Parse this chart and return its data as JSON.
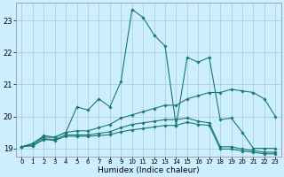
{
  "title": "",
  "xlabel": "Humidex (Indice chaleur)",
  "background_color": "#cceeff",
  "grid_color": "#aacccc",
  "line_color": "#1a7a6e",
  "xlim": [
    -0.5,
    23.5
  ],
  "ylim": [
    18.75,
    23.55
  ],
  "yticks": [
    19,
    20,
    21,
    22,
    23
  ],
  "xticks": [
    0,
    1,
    2,
    3,
    4,
    5,
    6,
    7,
    8,
    9,
    10,
    11,
    12,
    13,
    14,
    15,
    16,
    17,
    18,
    19,
    20,
    21,
    22,
    23
  ],
  "lines": [
    {
      "x": [
        0,
        1,
        2,
        3,
        4,
        5,
        6,
        7,
        8,
        9,
        10,
        11,
        12,
        13,
        14,
        15,
        16,
        17,
        18,
        19,
        20,
        21,
        22,
        23
      ],
      "y": [
        19.05,
        19.15,
        19.4,
        19.35,
        19.5,
        20.3,
        20.2,
        20.55,
        20.3,
        21.1,
        23.35,
        23.1,
        22.55,
        22.2,
        19.7,
        21.85,
        21.7,
        21.85,
        19.9,
        19.95,
        19.5,
        19.0,
        19.0,
        19.0
      ]
    },
    {
      "x": [
        0,
        1,
        2,
        3,
        4,
        5,
        6,
        7,
        8,
        9,
        10,
        11,
        12,
        13,
        14,
        15,
        16,
        17,
        18,
        19,
        20,
        21,
        22,
        23
      ],
      "y": [
        19.05,
        19.15,
        19.35,
        19.35,
        19.5,
        19.55,
        19.55,
        19.65,
        19.75,
        19.95,
        20.05,
        20.15,
        20.25,
        20.35,
        20.35,
        20.55,
        20.65,
        20.75,
        20.75,
        20.85,
        20.8,
        20.75,
        20.55,
        20.0
      ]
    },
    {
      "x": [
        0,
        1,
        2,
        3,
        4,
        5,
        6,
        7,
        8,
        9,
        10,
        11,
        12,
        13,
        14,
        15,
        16,
        17,
        18,
        19,
        20,
        21,
        22,
        23
      ],
      "y": [
        19.05,
        19.1,
        19.3,
        19.28,
        19.42,
        19.42,
        19.42,
        19.47,
        19.52,
        19.65,
        19.75,
        19.8,
        19.85,
        19.9,
        19.9,
        19.95,
        19.85,
        19.8,
        19.05,
        19.05,
        18.98,
        18.93,
        18.88,
        18.88
      ]
    },
    {
      "x": [
        0,
        1,
        2,
        3,
        4,
        5,
        6,
        7,
        8,
        9,
        10,
        11,
        12,
        13,
        14,
        15,
        16,
        17,
        18,
        19,
        20,
        21,
        22,
        23
      ],
      "y": [
        19.05,
        19.08,
        19.28,
        19.25,
        19.38,
        19.38,
        19.38,
        19.4,
        19.43,
        19.52,
        19.58,
        19.62,
        19.67,
        19.72,
        19.72,
        19.82,
        19.75,
        19.72,
        18.98,
        18.98,
        18.92,
        18.88,
        18.83,
        18.83
      ]
    }
  ]
}
